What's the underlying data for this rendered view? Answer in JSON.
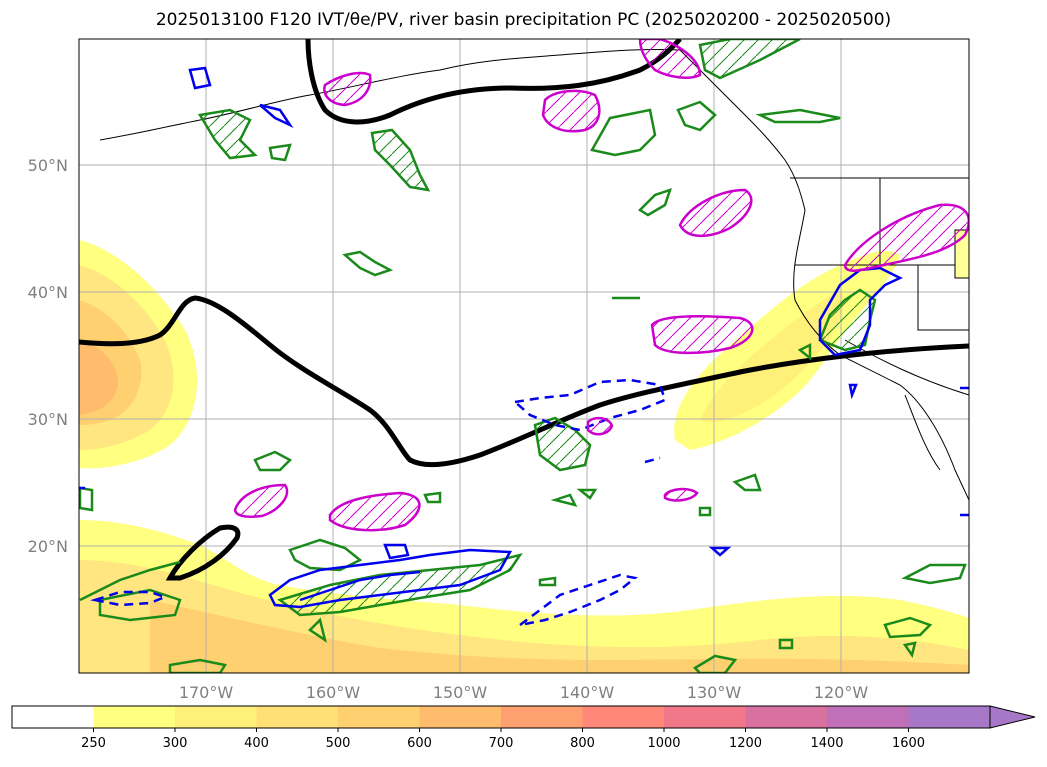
{
  "title": "2025013100 F120 IVT/θe/PV, river basin precipitation PC (2025020200 - 2025020500)",
  "map": {
    "lat_ticks": [
      "50°N",
      "40°N",
      "30°N",
      "20°N"
    ],
    "lon_ticks": [
      "170°W",
      "160°W",
      "150°W",
      "140°W",
      "130°W",
      "120°W"
    ],
    "gridlines": true
  },
  "colorbar": {
    "levels": [
      "250",
      "300",
      "400",
      "500",
      "600",
      "700",
      "800",
      "1000",
      "1200",
      "1400",
      "1600"
    ],
    "colors": [
      "#ffffff",
      "#ffff80",
      "#fff07a",
      "#ffe076",
      "#ffd070",
      "#ffbc6c",
      "#ffa070",
      "#ff8878",
      "#f07888",
      "#d870a0",
      "#c070b8",
      "#a878c8"
    ],
    "extend": "max"
  },
  "layers": {
    "ivt_fill": "IVT shading (yellow-orange)",
    "theta_e_contour": "black thick",
    "pv_contours": [
      "green",
      "blue",
      "blue dashed"
    ],
    "precip_pc": "magenta hatched"
  }
}
